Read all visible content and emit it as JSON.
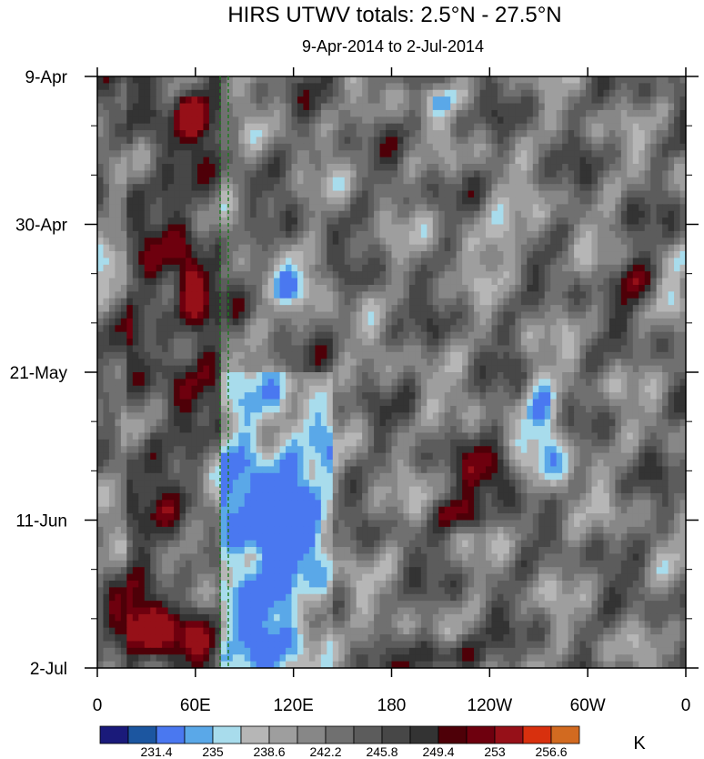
{
  "chart_data": {
    "type": "heatmap",
    "title": "HIRS UTWV totals: 2.5°N - 27.5°N",
    "subtitle": "9-Apr-2014 to 2-Jul-2014",
    "x_ticks": [
      "0",
      "60E",
      "120E",
      "180",
      "120W",
      "60W",
      "0"
    ],
    "x_tick_values": [
      0,
      60,
      120,
      180,
      240,
      300,
      360
    ],
    "x_range": [
      0,
      360
    ],
    "y_ticks": [
      "9-Apr",
      "30-Apr",
      "21-May",
      "11-Jun",
      "2-Jul"
    ],
    "y_tick_values": [
      "2014-04-09",
      "2014-04-30",
      "2014-05-21",
      "2014-06-11",
      "2014-07-02"
    ],
    "y_range": [
      "2014-04-09",
      "2014-07-02"
    ],
    "colorbar": {
      "unit_label": "K",
      "labels": [
        "231.4",
        "235",
        "238.6",
        "242.2",
        "245.8",
        "249.4",
        "253",
        "256.6"
      ],
      "levels": [
        229.6,
        231.4,
        233.2,
        235.0,
        236.8,
        238.6,
        240.4,
        242.2,
        244.0,
        245.8,
        247.6,
        249.4,
        251.2,
        253.0,
        254.8,
        256.6,
        258.4
      ],
      "colors": [
        "#1a1a7a",
        "#1c56a0",
        "#4a78f0",
        "#5aa8e8",
        "#a8dcec",
        "#b6b6b6",
        "#9e9e9e",
        "#878787",
        "#707070",
        "#5c5c5c",
        "#474747",
        "#333333",
        "#4e0008",
        "#6e000e",
        "#961018",
        "#d8300e",
        "#d26a20"
      ]
    },
    "grid": false,
    "annotations": [
      "green dashed vertical lines near 75E and 80E"
    ]
  }
}
